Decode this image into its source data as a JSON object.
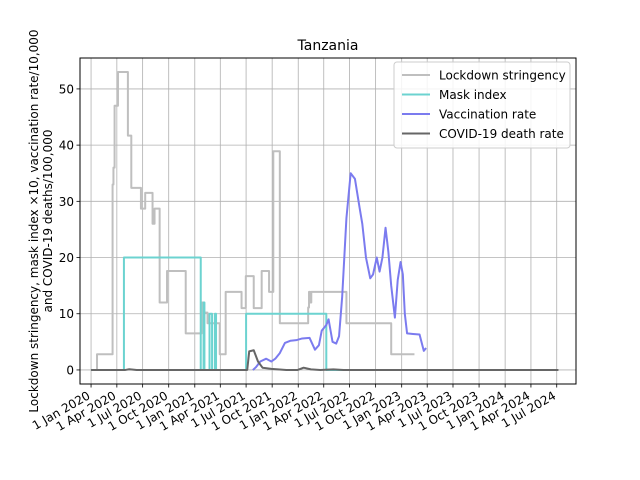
{
  "chart_data": {
    "type": "line",
    "title": "Tanzania",
    "ylabel_line1": "Lockdown stringency, mask index ×10, vaccination rate/10,000",
    "ylabel_line2": "and COVID-19 deaths/100,000",
    "xlabel": "",
    "x_ticks": [
      "2020-01-01",
      "2020-04-01",
      "2020-07-01",
      "2020-10-01",
      "2021-01-01",
      "2021-04-01",
      "2021-07-01",
      "2021-10-01",
      "2022-01-01",
      "2022-04-01",
      "2022-07-01",
      "2022-10-01",
      "2023-01-01",
      "2023-04-01",
      "2023-07-01",
      "2023-10-01",
      "2024-01-01",
      "2024-04-01",
      "2024-07-01"
    ],
    "x_tick_labels": [
      "1 Jan 2020",
      "1 Apr 2020",
      "1 Jul 2020",
      "1 Oct 2020",
      "1 Jan 2021",
      "1 Apr 2021",
      "1 Jul 2021",
      "1 Oct 2021",
      "1 Jan 2022",
      "1 Apr 2022",
      "1 Jul 2022",
      "1 Oct 2022",
      "1 Jan 2023",
      "1 Apr 2023",
      "1 Jul 2023",
      "1 Oct 2023",
      "1 Jan 2024",
      "1 Apr 2024",
      "1 Jul 2024"
    ],
    "xlim": [
      "2019-11-23",
      "2024-09-07"
    ],
    "y_ticks": [
      0,
      10,
      20,
      30,
      40,
      50
    ],
    "ylim": [
      -2.5,
      55.5
    ],
    "grid": true,
    "legend_position": "top-right",
    "series": [
      {
        "name": "Lockdown stringency",
        "color": "#bfbfbf",
        "step": true,
        "points": [
          [
            "2020-01-01",
            0
          ],
          [
            "2020-01-22",
            2.8
          ],
          [
            "2020-03-15",
            2.8
          ],
          [
            "2020-03-17",
            33
          ],
          [
            "2020-03-20",
            36
          ],
          [
            "2020-03-24",
            47
          ],
          [
            "2020-04-05",
            53
          ],
          [
            "2020-05-10",
            41.7
          ],
          [
            "2020-05-22",
            32.4
          ],
          [
            "2020-06-25",
            28.7
          ],
          [
            "2020-07-10",
            31.5
          ],
          [
            "2020-08-05",
            26
          ],
          [
            "2020-08-12",
            28.7
          ],
          [
            "2020-08-30",
            12
          ],
          [
            "2020-09-25",
            17.6
          ],
          [
            "2020-11-30",
            6.5
          ],
          [
            "2021-01-25",
            12
          ],
          [
            "2021-02-02",
            10.2
          ],
          [
            "2021-02-15",
            8.3
          ],
          [
            "2021-03-30",
            2.8
          ],
          [
            "2021-04-20",
            13.9
          ],
          [
            "2021-06-15",
            11
          ],
          [
            "2021-06-30",
            16.7
          ],
          [
            "2021-07-28",
            11
          ],
          [
            "2021-08-25",
            17.6
          ],
          [
            "2021-09-20",
            13.9
          ],
          [
            "2021-10-05",
            38.9
          ],
          [
            "2021-10-28",
            8.3
          ],
          [
            "2022-02-05",
            11.1
          ],
          [
            "2022-02-08",
            13.9
          ],
          [
            "2022-02-12",
            12
          ],
          [
            "2022-02-16",
            13.9
          ],
          [
            "2022-06-20",
            8.3
          ],
          [
            "2022-11-25",
            2.8
          ],
          [
            "2023-02-15",
            2.8
          ]
        ]
      },
      {
        "name": "Mask index",
        "color": "#6cd3d0",
        "step": true,
        "points": [
          [
            "2020-01-01",
            0
          ],
          [
            "2020-04-26",
            20
          ],
          [
            "2021-01-22",
            0
          ],
          [
            "2021-02-01",
            12
          ],
          [
            "2021-02-04",
            0
          ],
          [
            "2021-02-22",
            10
          ],
          [
            "2021-03-03",
            0
          ],
          [
            "2021-03-13",
            10
          ],
          [
            "2021-03-17",
            0
          ],
          [
            "2021-07-01",
            10
          ],
          [
            "2022-04-10",
            0
          ],
          [
            "2023-02-15",
            0
          ]
        ]
      },
      {
        "name": "Vaccination rate",
        "color": "#7b7bef",
        "step": false,
        "points": [
          [
            "2021-07-25",
            0
          ],
          [
            "2021-08-05",
            0.5
          ],
          [
            "2021-08-20",
            1.5
          ],
          [
            "2021-09-10",
            2
          ],
          [
            "2021-09-28",
            1.5
          ],
          [
            "2021-10-12",
            2
          ],
          [
            "2021-10-28",
            3
          ],
          [
            "2021-11-15",
            4.8
          ],
          [
            "2021-12-05",
            5.2
          ],
          [
            "2021-12-25",
            5.3
          ],
          [
            "2022-01-15",
            5.6
          ],
          [
            "2022-02-10",
            5.7
          ],
          [
            "2022-03-01",
            3.6
          ],
          [
            "2022-03-15",
            4.4
          ],
          [
            "2022-03-25",
            7
          ],
          [
            "2022-04-10",
            8
          ],
          [
            "2022-04-18",
            9
          ],
          [
            "2022-05-02",
            5
          ],
          [
            "2022-05-15",
            4.7
          ],
          [
            "2022-05-25",
            6
          ],
          [
            "2022-06-05",
            13
          ],
          [
            "2022-06-20",
            27
          ],
          [
            "2022-07-05",
            35
          ],
          [
            "2022-07-20",
            34
          ],
          [
            "2022-08-05",
            29
          ],
          [
            "2022-08-15",
            26
          ],
          [
            "2022-08-28",
            20
          ],
          [
            "2022-09-12",
            16.3
          ],
          [
            "2022-09-22",
            17
          ],
          [
            "2022-10-05",
            20
          ],
          [
            "2022-10-15",
            17.5
          ],
          [
            "2022-10-25",
            20
          ],
          [
            "2022-11-05",
            25.3
          ],
          [
            "2022-11-15",
            21
          ],
          [
            "2022-11-25",
            15
          ],
          [
            "2022-12-08",
            9.3
          ],
          [
            "2022-12-18",
            16
          ],
          [
            "2022-12-28",
            19.2
          ],
          [
            "2023-01-05",
            17
          ],
          [
            "2023-01-12",
            10
          ],
          [
            "2023-01-20",
            6.5
          ],
          [
            "2023-02-10",
            6.4
          ],
          [
            "2023-03-05",
            6.3
          ],
          [
            "2023-03-20",
            3.4
          ],
          [
            "2023-03-28",
            3.9
          ]
        ]
      },
      {
        "name": "COVID-19 death rate",
        "color": "#666666",
        "step": false,
        "points": [
          [
            "2020-01-01",
            0
          ],
          [
            "2020-05-01",
            0
          ],
          [
            "2020-05-15",
            0.12
          ],
          [
            "2020-06-10",
            0
          ],
          [
            "2021-06-15",
            0
          ],
          [
            "2021-07-05",
            0
          ],
          [
            "2021-07-12",
            3.3
          ],
          [
            "2021-07-28",
            3.5
          ],
          [
            "2021-08-12",
            1.5
          ],
          [
            "2021-08-28",
            0.4
          ],
          [
            "2021-09-28",
            0.2
          ],
          [
            "2021-11-20",
            0
          ],
          [
            "2021-12-30",
            0
          ],
          [
            "2022-01-20",
            0.4
          ],
          [
            "2022-02-15",
            0.1
          ],
          [
            "2022-03-20",
            0
          ],
          [
            "2022-05-05",
            0.1
          ],
          [
            "2022-06-10",
            0
          ],
          [
            "2024-07-07",
            0
          ]
        ]
      }
    ]
  }
}
